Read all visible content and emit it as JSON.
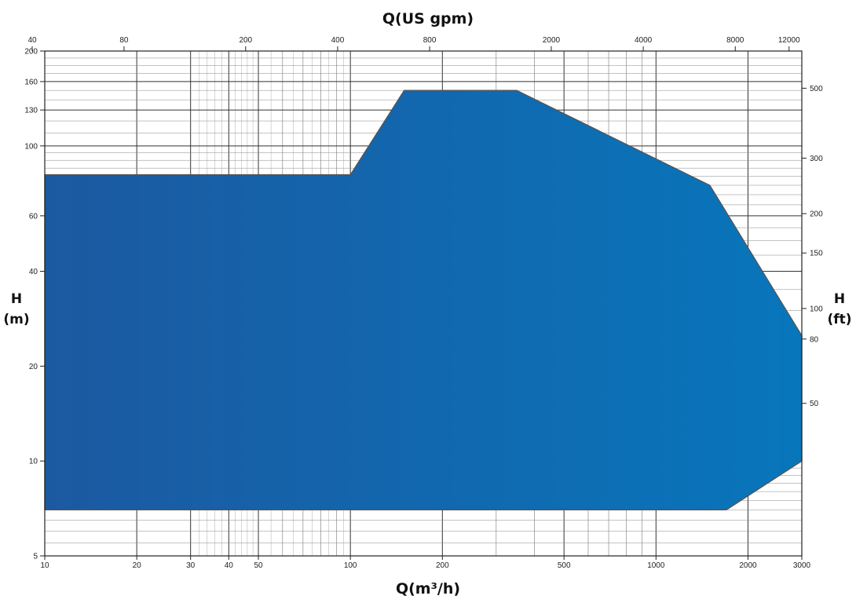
{
  "chart_data": {
    "type": "area",
    "title": "",
    "x_label_bottom": "Q(m³/h)",
    "x_label_top": "Q(US gpm)",
    "y_label_left_line1": "H",
    "y_label_left_line2": "(m)",
    "y_label_right_line1": "H",
    "y_label_right_line2": "(ft)",
    "x_scale": "log",
    "y_scale": "log",
    "xlim": [
      10,
      3000
    ],
    "ylim": [
      5,
      200
    ],
    "grid": true,
    "bottom_ticks": [
      10,
      20,
      30,
      40,
      50,
      100,
      200,
      500,
      1000,
      2000,
      3000
    ],
    "left_ticks": [
      5,
      10,
      20,
      40,
      60,
      100,
      130,
      160,
      200
    ],
    "top_ticks": [
      40,
      80,
      200,
      400,
      800,
      2000,
      4000,
      8000,
      12000
    ],
    "right_ticks": [
      50,
      80,
      100,
      150,
      200,
      300,
      500
    ],
    "series": [
      {
        "x": [
          10,
          100,
          150,
          350,
          1500,
          3000,
          3000,
          1700,
          10
        ],
        "y": [
          81,
          81,
          150,
          150,
          75,
          25,
          10,
          7,
          7
        ]
      }
    ],
    "fill_colors": {
      "left": "#1c59a1",
      "right": "#0876bb",
      "outline": "#555555"
    }
  }
}
